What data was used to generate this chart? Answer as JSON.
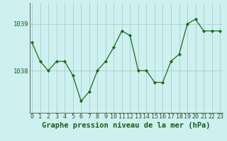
{
  "x": [
    0,
    1,
    2,
    3,
    4,
    5,
    6,
    7,
    8,
    9,
    10,
    11,
    12,
    13,
    14,
    15,
    16,
    17,
    18,
    19,
    20,
    21,
    22,
    23
  ],
  "y": [
    1038.6,
    1038.2,
    1038.0,
    1038.2,
    1038.2,
    1037.9,
    1037.35,
    1037.55,
    1038.0,
    1038.2,
    1038.5,
    1038.85,
    1038.75,
    1038.0,
    1038.0,
    1037.75,
    1037.75,
    1038.2,
    1038.35,
    1039.0,
    1039.1,
    1038.85,
    1038.85,
    1038.85
  ],
  "line_color": "#1a6b1a",
  "marker_color": "#1a6b1a",
  "bg_color": "#cff0f0",
  "grid_color": "#99ccbb",
  "title": "Graphe pression niveau de la mer (hPa)",
  "ylim_min": 1037.1,
  "ylim_max": 1039.45,
  "yticks": [
    1038,
    1039
  ],
  "xlim_min": -0.3,
  "xlim_max": 23.3,
  "title_color": "#1a5c1a",
  "title_fontsize": 7.5,
  "tick_label_color": "#1a5c1a",
  "tick_fontsize": 6.0,
  "ytick_fontsize": 6.5
}
